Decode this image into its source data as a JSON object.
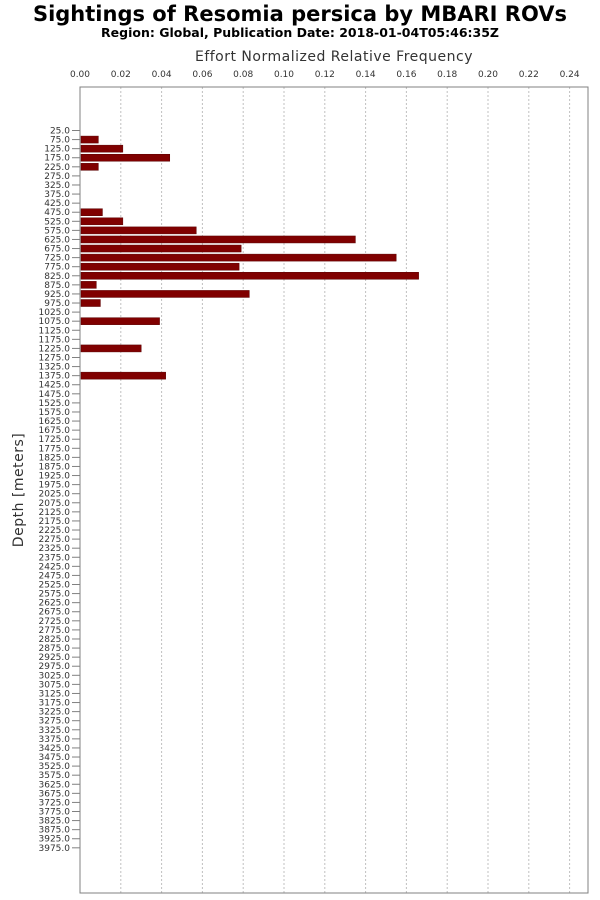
{
  "chart_data": {
    "type": "bar",
    "orientation": "horizontal",
    "title": "Sightings of Resomia persica by MBARI ROVs",
    "subtitle": "Region: Global, Publication Date: 2018-01-04T05:46:35Z",
    "xlabel": "Effort Normalized Relative Frequency",
    "ylabel": "Depth [meters]",
    "xlim": [
      0,
      0.25
    ],
    "xticks": [
      "0.00",
      "0.02",
      "0.04",
      "0.06",
      "0.08",
      "0.10",
      "0.12",
      "0.14",
      "0.16",
      "0.18",
      "0.20",
      "0.22",
      "0.24"
    ],
    "bar_color": "#800000",
    "grid": true,
    "categories": [
      "25.0",
      "75.0",
      "125.0",
      "175.0",
      "225.0",
      "275.0",
      "325.0",
      "375.0",
      "425.0",
      "475.0",
      "525.0",
      "575.0",
      "625.0",
      "675.0",
      "725.0",
      "775.0",
      "825.0",
      "875.0",
      "925.0",
      "975.0",
      "1025.0",
      "1075.0",
      "1125.0",
      "1175.0",
      "1225.0",
      "1275.0",
      "1325.0",
      "1375.0",
      "1425.0",
      "1475.0",
      "1525.0",
      "1575.0",
      "1625.0",
      "1675.0",
      "1725.0",
      "1775.0",
      "1825.0",
      "1875.0",
      "1925.0",
      "1975.0",
      "2025.0",
      "2075.0",
      "2125.0",
      "2175.0",
      "2225.0",
      "2275.0",
      "2325.0",
      "2375.0",
      "2425.0",
      "2475.0",
      "2525.0",
      "2575.0",
      "2625.0",
      "2675.0",
      "2725.0",
      "2775.0",
      "2825.0",
      "2875.0",
      "2925.0",
      "2975.0",
      "3025.0",
      "3075.0",
      "3125.0",
      "3175.0",
      "3225.0",
      "3275.0",
      "3325.0",
      "3375.0",
      "3425.0",
      "3475.0",
      "3525.0",
      "3575.0",
      "3625.0",
      "3675.0",
      "3725.0",
      "3775.0",
      "3825.0",
      "3875.0",
      "3925.0",
      "3975.0"
    ],
    "values": [
      0,
      0.009,
      0.021,
      0.044,
      0.009,
      0,
      0,
      0,
      0,
      0.011,
      0.021,
      0.057,
      0.135,
      0.079,
      0.155,
      0.078,
      0.166,
      0.008,
      0.083,
      0.01,
      0,
      0.039,
      0,
      0,
      0.03,
      0,
      0,
      0.042,
      0,
      0,
      0,
      0,
      0,
      0,
      0,
      0,
      0,
      0,
      0,
      0,
      0,
      0,
      0,
      0,
      0,
      0,
      0,
      0,
      0,
      0,
      0,
      0,
      0,
      0,
      0,
      0,
      0,
      0,
      0,
      0,
      0,
      0,
      0,
      0,
      0,
      0,
      0,
      0,
      0,
      0,
      0,
      0,
      0,
      0,
      0,
      0,
      0,
      0,
      0,
      0
    ]
  }
}
